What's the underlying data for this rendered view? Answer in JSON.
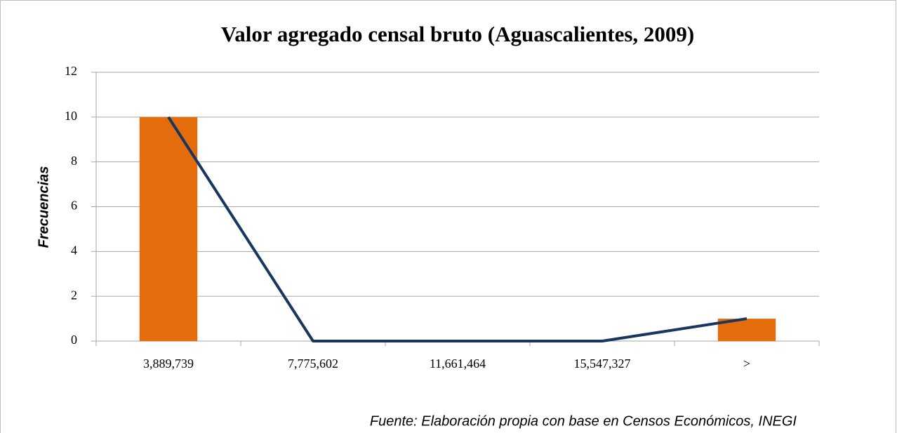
{
  "chart_data": {
    "type": "combo",
    "title": "Valor agregado censal bruto (Aguascalientes, 2009)",
    "ylabel": "Frecuencias",
    "note": "Fuente: Elaboración propia con base en Censos Económicos, INEGI",
    "categories": [
      "3,889,739",
      "7,775,602",
      "11,661,464",
      "15,547,327",
      ">"
    ],
    "series": [
      {
        "type": "bar",
        "color": "#e46c0a",
        "values": [
          10,
          0,
          0,
          0,
          1
        ]
      },
      {
        "type": "line",
        "color": "#17375e",
        "values": [
          10,
          0,
          0,
          0,
          1
        ]
      }
    ],
    "ylim": [
      0,
      12
    ],
    "yticks": [
      0,
      2,
      4,
      6,
      8,
      10,
      12
    ],
    "grid": true
  }
}
